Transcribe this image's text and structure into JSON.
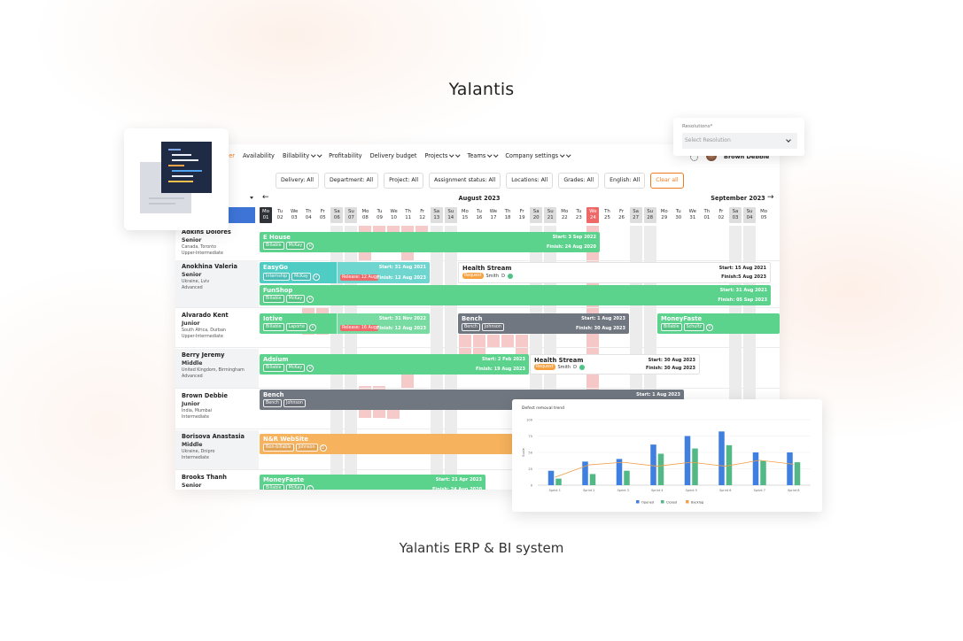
{
  "brand": "Yalantis",
  "caption": "Yalantis ERP & BI system",
  "nav": {
    "items": [
      {
        "label": "Planner",
        "active": true
      },
      {
        "label": "Availability"
      },
      {
        "label": "Billability",
        "menu": true
      },
      {
        "label": "Profitability"
      },
      {
        "label": "Delivery budget"
      },
      {
        "label": "Projects",
        "menu": true
      },
      {
        "label": "Teams",
        "menu": true
      },
      {
        "label": "Company settings",
        "menu": true
      }
    ],
    "user": "Brown Debbie"
  },
  "resolutions": {
    "label": "Resolutions*",
    "placeholder": "Select Resolution"
  },
  "filters": [
    "Delivery: All",
    "Department: All",
    "Project: All",
    "Assignment status: All",
    "Locations: All",
    "Grades: All",
    "English: All"
  ],
  "clear": "Clear all",
  "timeline": {
    "months": [
      "August 2023",
      "September 2023"
    ],
    "days": [
      {
        "dow": "Mo",
        "day": "01",
        "state": "selected"
      },
      {
        "dow": "Tu",
        "day": "02"
      },
      {
        "dow": "We",
        "day": "03"
      },
      {
        "dow": "Th",
        "day": "04"
      },
      {
        "dow": "Fr",
        "day": "05"
      },
      {
        "dow": "Sa",
        "day": "06"
      },
      {
        "dow": "Su",
        "day": "07"
      },
      {
        "dow": "Mo",
        "day": "08"
      },
      {
        "dow": "Tu",
        "day": "09"
      },
      {
        "dow": "We",
        "day": "10"
      },
      {
        "dow": "Th",
        "day": "11"
      },
      {
        "dow": "Fr",
        "day": "12"
      },
      {
        "dow": "Sa",
        "day": "13"
      },
      {
        "dow": "Su",
        "day": "14"
      },
      {
        "dow": "Mo",
        "day": "15"
      },
      {
        "dow": "Tu",
        "day": "16"
      },
      {
        "dow": "We",
        "day": "17"
      },
      {
        "dow": "Th",
        "day": "18"
      },
      {
        "dow": "Fr",
        "day": "19"
      },
      {
        "dow": "Sa",
        "day": "20"
      },
      {
        "dow": "Su",
        "day": "21"
      },
      {
        "dow": "Mo",
        "day": "22"
      },
      {
        "dow": "Tu",
        "day": "23"
      },
      {
        "dow": "We",
        "day": "24",
        "state": "today"
      },
      {
        "dow": "Th",
        "day": "25"
      },
      {
        "dow": "Fr",
        "day": "26"
      },
      {
        "dow": "Sa",
        "day": "27"
      },
      {
        "dow": "Su",
        "day": "28"
      },
      {
        "dow": "Mo",
        "day": "29"
      },
      {
        "dow": "Tu",
        "day": "30"
      },
      {
        "dow": "We",
        "day": "31"
      },
      {
        "dow": "Th",
        "day": "01"
      },
      {
        "dow": "Fr",
        "day": "02"
      },
      {
        "dow": "Sa",
        "day": "03"
      },
      {
        "dow": "Su",
        "day": "04"
      },
      {
        "dow": "Mo",
        "day": "05"
      }
    ]
  },
  "people": [
    {
      "name": "Adkins Dolores",
      "grade": "Senior",
      "location": "Canada, Toronto",
      "english": "Upper-Intermediate",
      "assignments": [
        {
          "project": "E House",
          "color": "#5bd38d",
          "tags": [
            "Billable",
            "McKay"
          ],
          "initial": "H",
          "start": "Start: 3 Sep 2022",
          "finish": "Finish: 24 Aug 2020"
        }
      ]
    },
    {
      "name": "Anokhina Valeria",
      "grade": "Senior",
      "location": "Ukraine, Lviv",
      "english": "Advanced",
      "assignments": [
        {
          "project": "EasyGo",
          "color": "#4fcdc5",
          "tags": [
            "Internship",
            "McKay"
          ],
          "initial": "H",
          "start": "Start: 31 Aug 2021",
          "release": "Release: 12 Aug",
          "finish": "Finish: 12 Aug 2023"
        },
        {
          "project": "Health Stream",
          "color": "#ffffff",
          "tags": [
            "Request",
            "Smith"
          ],
          "initial": "D",
          "start": "Start: 15 Aug 2021",
          "finish": "Finish:5 Aug 2023"
        },
        {
          "project": "FunShop",
          "color": "#5bd38d",
          "tags": [
            "Billable",
            "McKay"
          ],
          "initial": "H",
          "start": "Start: 31 Aug 2021",
          "finish": "Finish: 05 Sep 2023"
        }
      ]
    },
    {
      "name": "Alvarado Kent",
      "grade": "Junior",
      "location": "South Africa, Durban",
      "english": "Upper-Intermediate",
      "assignments": [
        {
          "project": "Iotive",
          "color": "#5bd38d",
          "tags": [
            "Billable",
            "Laporte"
          ],
          "initial": "A",
          "start": "Start: 31 Nov 2022",
          "release": "Release: 16 Aug",
          "finish": "Finish: 12 Aug 2023"
        },
        {
          "project": "Bench",
          "color": "#717780",
          "tags": [
            "Bench",
            "Johnson"
          ],
          "start": "Start: 1 Aug 2023",
          "finish": "Finish: 30 Aug 2023"
        },
        {
          "project": "MoneyFaste",
          "color": "#5bd38d",
          "tags": [
            "Billable",
            "Schultz"
          ],
          "initial": "D"
        }
      ]
    },
    {
      "name": "Berry Jeremy",
      "grade": "Middle",
      "location": "United Kingdom, Birmingham",
      "english": "Advanced",
      "assignments": [
        {
          "project": "Adsium",
          "color": "#5bd38d",
          "tags": [
            "Billable",
            "McKay"
          ],
          "initial": "H",
          "start": "Start: 2 Feb 2023",
          "finish": "Finish: 19 Aug 2023"
        },
        {
          "project": "Health Stream",
          "color": "#ffffff",
          "tags": [
            "Request",
            "Smith"
          ],
          "initial": "D",
          "start": "Start: 30 Aug 2023",
          "finish": "Finish: 30 Aug 2023"
        }
      ]
    },
    {
      "name": "Brown Debbie",
      "grade": "Junior",
      "location": "India, Mumbai",
      "english": "Intermediate",
      "assignments": [
        {
          "project": "Bench",
          "color": "#717780",
          "tags": [
            "Bench",
            "Johnson"
          ],
          "start": "Start: 1 Aug 2023"
        }
      ]
    },
    {
      "name": "Borisova Anastasia",
      "grade": "Middle",
      "location": "Ukraine, Dnipro",
      "english": "Intermediate",
      "assignments": [
        {
          "project": "N&R WebSite",
          "color": "#f6b25c",
          "tags": [
            "Non-billable",
            "Johnson"
          ],
          "initial": "D"
        }
      ]
    },
    {
      "name": "Brooks Thanh",
      "grade": "Senior",
      "assignments": [
        {
          "project": "MoneyFaste",
          "color": "#5bd38d",
          "tags": [
            "Billable",
            "McKay"
          ],
          "initial": "C",
          "start": "Start: 21 Apr 2023",
          "finish": "Finish: 24 Aug 2020"
        }
      ]
    }
  ],
  "chart_data": {
    "type": "bar",
    "title": "Defect removal trend",
    "ylabel": "Scale",
    "categories": [
      "Sprint 1",
      "Sprint 2",
      "Sprint 3",
      "Sprint 4",
      "Sprint 5",
      "Sprint 6",
      "Sprint 7",
      "Sprint 8"
    ],
    "series": [
      {
        "name": "Opened",
        "color": "#3f7fe0",
        "values": [
          22,
          36,
          40,
          62,
          75,
          82,
          50,
          50
        ]
      },
      {
        "name": "Closed",
        "color": "#52b886",
        "values": [
          10,
          17,
          22,
          48,
          56,
          61,
          37,
          35
        ]
      },
      {
        "name": "Backlog",
        "color": "#f0a04a",
        "kind": "line",
        "values": [
          12,
          31,
          35,
          29,
          35,
          29,
          38,
          32
        ]
      }
    ],
    "ylim": [
      0,
      100
    ],
    "yticks": [
      0,
      25,
      50,
      75,
      100
    ],
    "grid": true
  }
}
